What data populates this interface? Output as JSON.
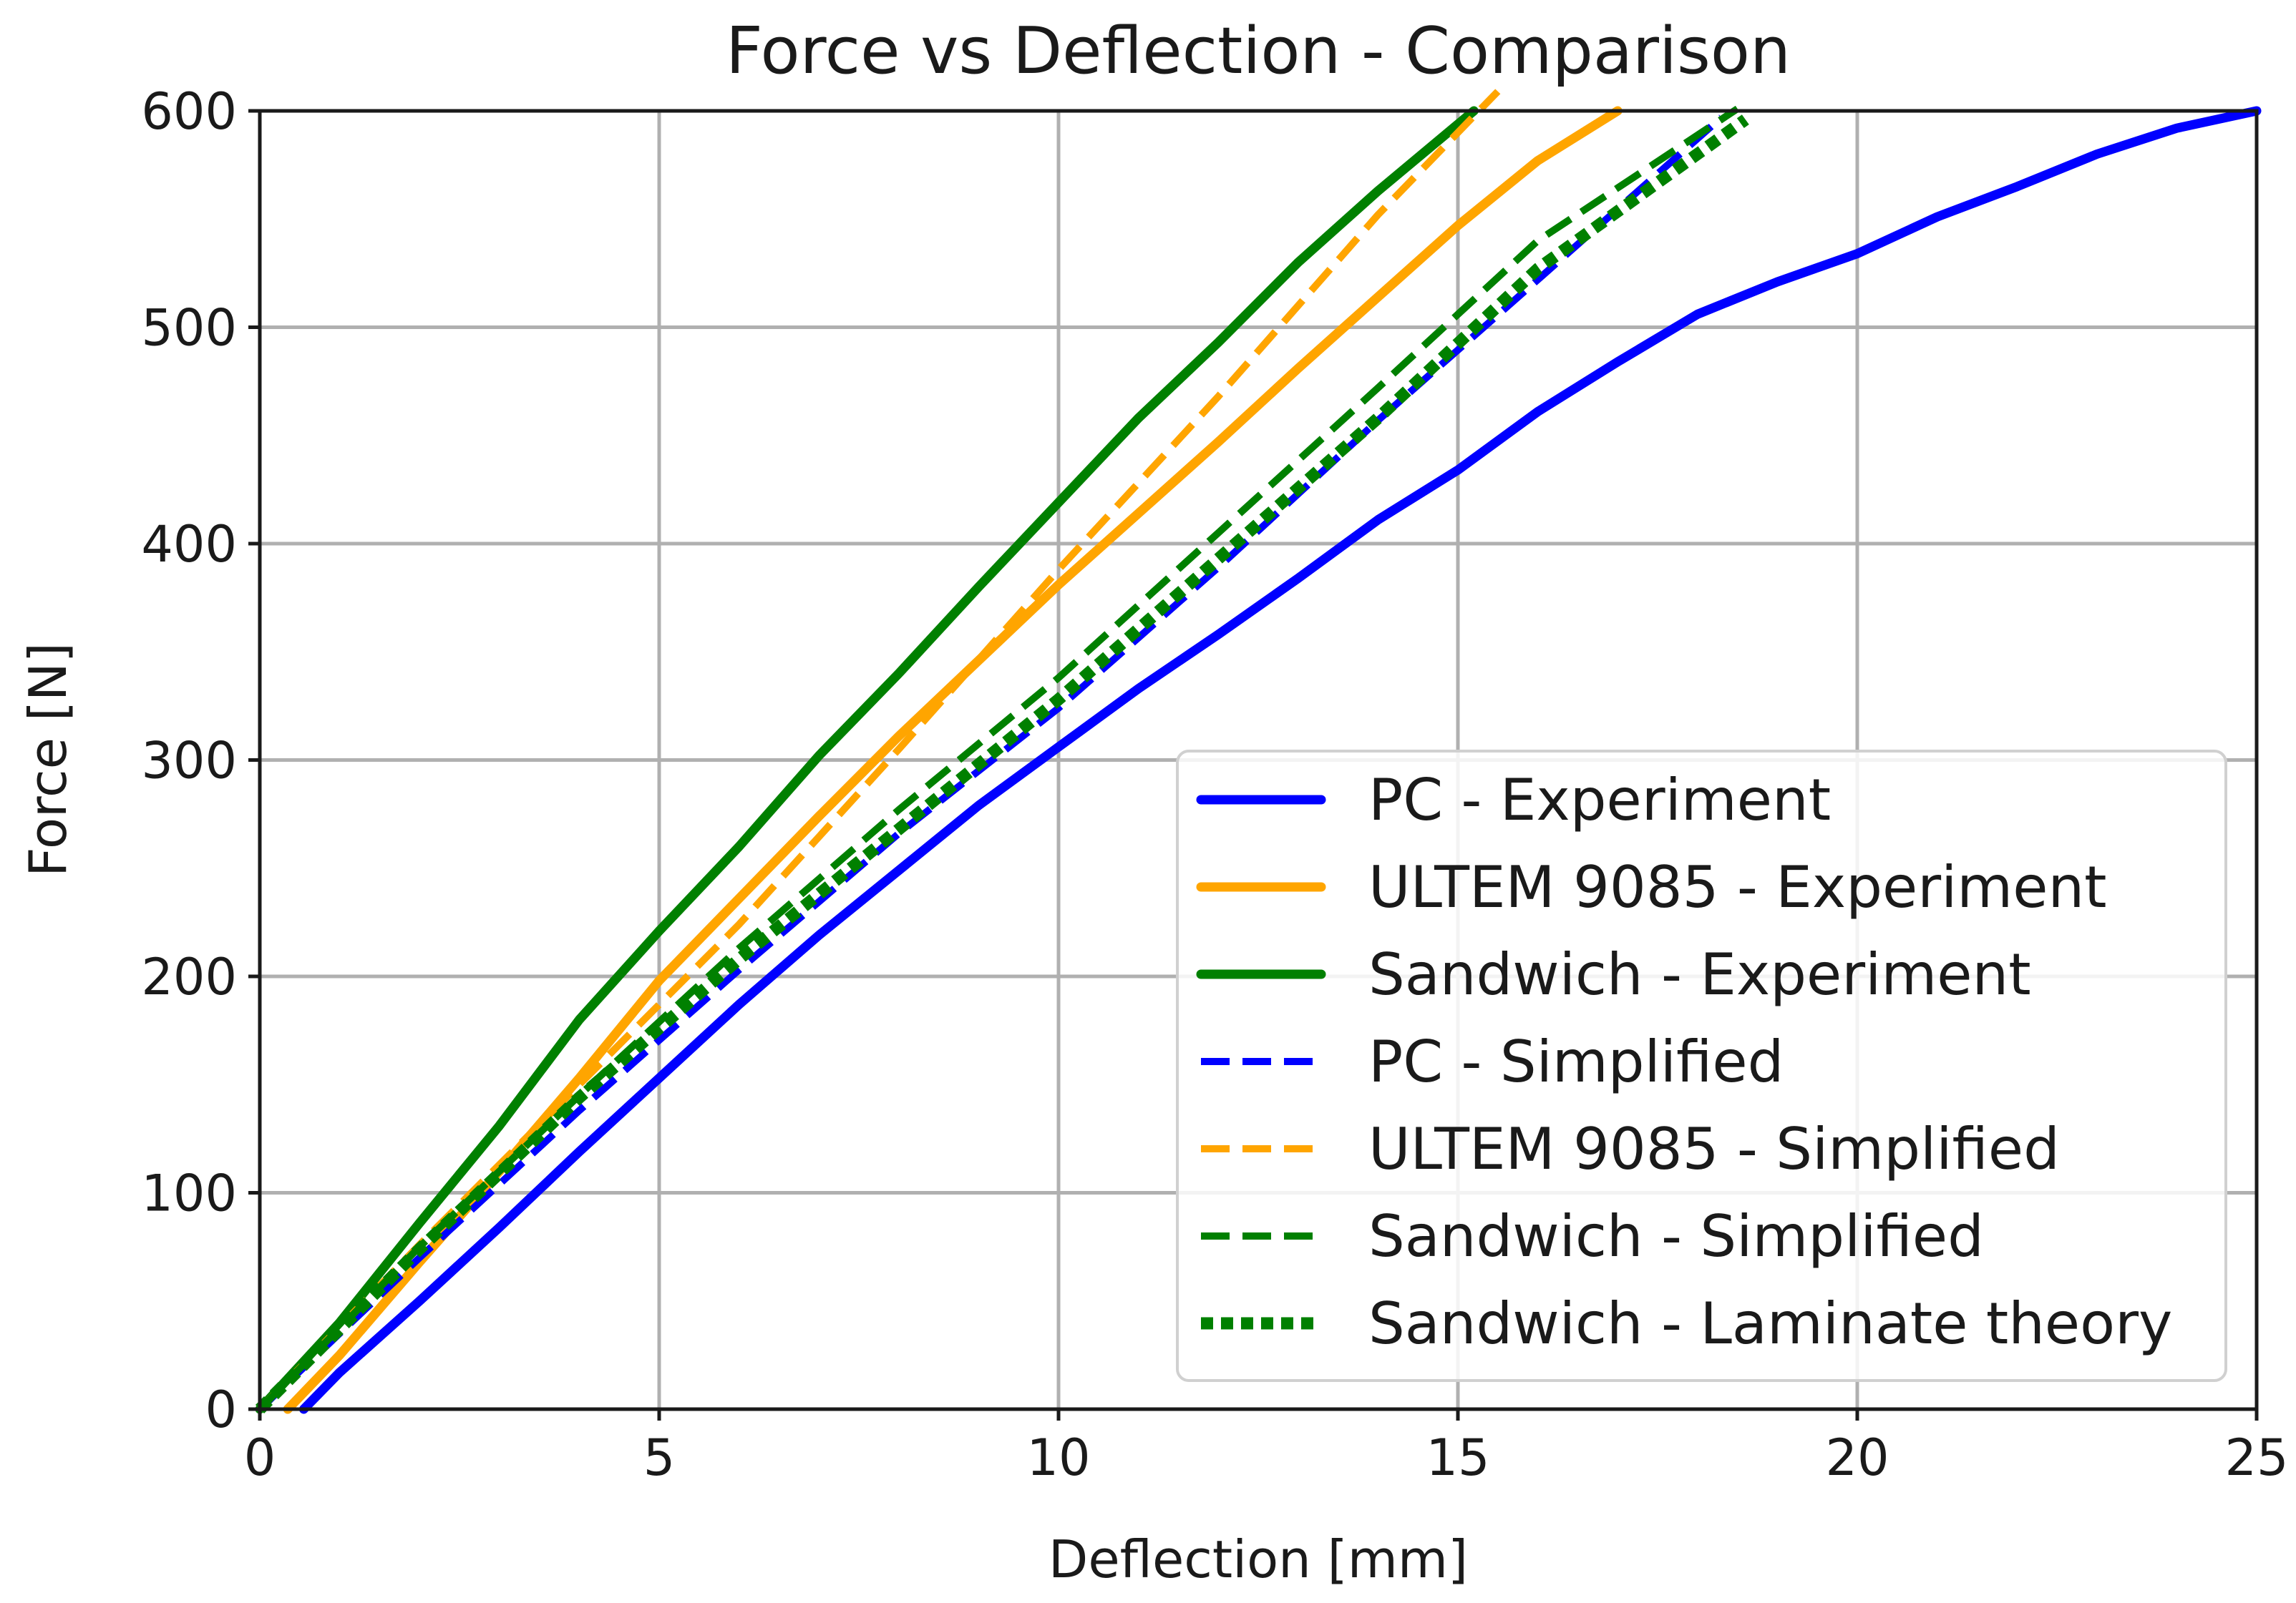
{
  "chart_data": {
    "type": "line",
    "title": "Force vs Deflection - Comparison",
    "xlabel": "Deflection [mm]",
    "ylabel": "Force [N]",
    "xlim": [
      0,
      25
    ],
    "ylim": [
      0,
      600
    ],
    "x_ticks": [
      0,
      5,
      10,
      15,
      20,
      25
    ],
    "y_ticks": [
      0,
      100,
      200,
      300,
      400,
      500,
      600
    ],
    "grid": true,
    "legend_position": "lower-right",
    "series": [
      {
        "name": "PC - Experiment",
        "color": "#0000ff",
        "style": "solid",
        "x": [
          0.55,
          1,
          2,
          3,
          4,
          5,
          6,
          7,
          8,
          9,
          10,
          11,
          12,
          13,
          14,
          15,
          16,
          17,
          18,
          19,
          20,
          21,
          22,
          23,
          24,
          25
        ],
        "y": [
          0,
          17,
          50,
          84,
          119,
          153,
          187,
          219,
          249,
          279,
          306,
          333,
          358,
          384,
          411,
          434,
          461,
          484,
          506,
          521,
          534,
          551,
          565,
          580,
          592,
          600
        ]
      },
      {
        "name": "ULTEM 9085 - Experiment",
        "color": "#ffa500",
        "style": "solid",
        "x": [
          0.35,
          1,
          2,
          3,
          4,
          5,
          6,
          7,
          8,
          9,
          10,
          11,
          12,
          13,
          14,
          15,
          16,
          17
        ],
        "y": [
          0,
          25,
          68,
          110,
          153,
          198,
          236,
          274,
          311,
          346,
          381,
          414,
          447,
          481,
          514,
          547,
          577,
          600
        ]
      },
      {
        "name": "Sandwich - Experiment",
        "color": "#008000",
        "style": "solid",
        "x": [
          0.0,
          1,
          2,
          3,
          4,
          5,
          6,
          7,
          8,
          9,
          10,
          11,
          12,
          13,
          14,
          15.2
        ],
        "y": [
          0,
          40,
          86,
          131,
          180,
          221,
          260,
          302,
          340,
          380,
          419,
          458,
          493,
          530,
          563,
          600
        ]
      },
      {
        "name": "PC - Simplified",
        "color": "#0000ff",
        "style": "dashed",
        "x": [
          0.0,
          2,
          4,
          6,
          8,
          10,
          12,
          14,
          16,
          18.3
        ],
        "y": [
          0,
          70,
          138,
          203,
          266,
          324,
          389,
          457,
          522,
          597
        ]
      },
      {
        "name": "ULTEM 9085 - Simplified",
        "color": "#ffa500",
        "style": "dashed",
        "x": [
          0.0,
          2,
          4,
          6,
          8,
          10,
          12,
          14,
          15.5
        ],
        "y": [
          0,
          76,
          150,
          224,
          305,
          388,
          468,
          552,
          609
        ]
      },
      {
        "name": "Sandwich - Simplified",
        "color": "#008000",
        "style": "dashed",
        "x": [
          0.0,
          2,
          4,
          6,
          8,
          10,
          12,
          14,
          16,
          18.5
        ],
        "y": [
          0,
          75,
          145,
          213,
          277,
          338,
          405,
          472,
          540,
          601
        ]
      },
      {
        "name": "Sandwich - Laminate theory",
        "color": "#008000",
        "style": "dotted",
        "x": [
          0.0,
          2,
          4,
          6,
          8,
          10,
          12,
          14,
          16,
          18.6
        ],
        "y": [
          0,
          74,
          144,
          208,
          268,
          328,
          393,
          458,
          527,
          596
        ]
      }
    ]
  }
}
